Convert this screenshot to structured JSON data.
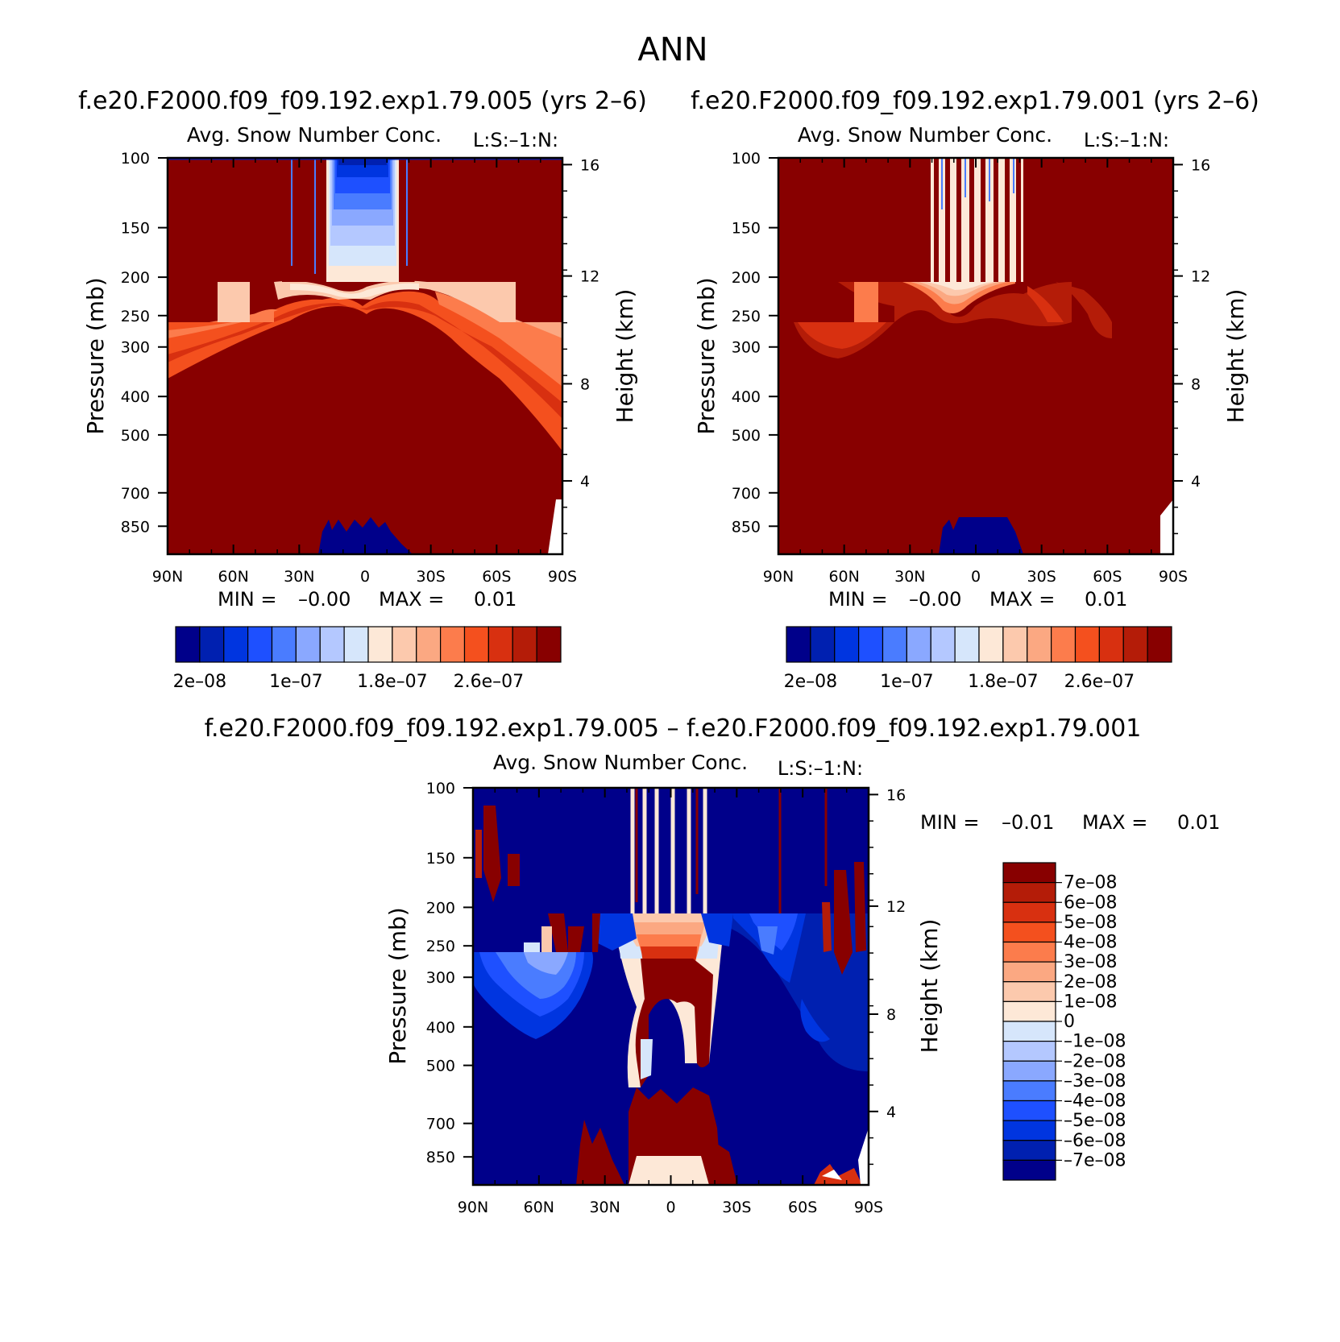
{
  "page": {
    "title": "ANN",
    "diff_title": "f.e20.F2000.f09_f09.192.exp1.79.005 – f.e20.F2000.f09_f09.192.exp1.79.001"
  },
  "colors": {
    "abs_scale": [
      "#00008a",
      "#0020b0",
      "#0035e0",
      "#1e50ff",
      "#4a7cff",
      "#8aa8ff",
      "#b4c8ff",
      "#d6e6fb",
      "#fde8d7",
      "#fcc9ad",
      "#fba882",
      "#fc7c4c",
      "#f4501e",
      "#d83010",
      "#b41c08",
      "#880000"
    ],
    "diff_scale": [
      "#00008a",
      "#0020b0",
      "#0035e0",
      "#1e50ff",
      "#4a7cff",
      "#8aa8ff",
      "#b4c8ff",
      "#d6e6fb",
      "#fde8d7",
      "#fcc9ad",
      "#fba882",
      "#fc7c4c",
      "#f4501e",
      "#d83010",
      "#b41c08",
      "#880000"
    ]
  },
  "chart_data": [
    {
      "type": "heatmap",
      "case": "f.e20.F2000.f09_f09.192.exp1.79.005 (yrs 2–6)",
      "title": "Avg. Snow Number Conc.",
      "units_label": "L:S:–1:N:",
      "xlabel": "",
      "ylabel": "Pressure (mb)",
      "y2label": "Height (km)",
      "x_ticks": [
        "90N",
        "60N",
        "30N",
        "0",
        "30S",
        "60S",
        "90S"
      ],
      "y_ticks": [
        "100",
        "150",
        "200",
        "250",
        "300",
        "400",
        "500",
        "700",
        "850"
      ],
      "y2_ticks": [
        "16",
        "12",
        "8",
        "4"
      ],
      "min_label": "MIN =",
      "min_value": "–0.00",
      "max_label": "MAX =",
      "max_value": "0.01",
      "colorbar_labels": [
        "2e–08",
        "1e–07",
        "1.8e–07",
        "2.6e–07"
      ]
    },
    {
      "type": "heatmap",
      "case": "f.e20.F2000.f09_f09.192.exp1.79.001 (yrs 2–6)",
      "title": "Avg. Snow Number Conc.",
      "units_label": "L:S:–1:N:",
      "xlabel": "",
      "ylabel": "Pressure (mb)",
      "y2label": "Height (km)",
      "x_ticks": [
        "90N",
        "60N",
        "30N",
        "0",
        "30S",
        "60S",
        "90S"
      ],
      "y_ticks": [
        "100",
        "150",
        "200",
        "250",
        "300",
        "400",
        "500",
        "700",
        "850"
      ],
      "y2_ticks": [
        "16",
        "12",
        "8",
        "4"
      ],
      "min_label": "MIN =",
      "min_value": "–0.00",
      "max_label": "MAX =",
      "max_value": "0.01",
      "colorbar_labels": [
        "2e–08",
        "1e–07",
        "1.8e–07",
        "2.6e–07"
      ]
    },
    {
      "type": "heatmap",
      "title": "Avg. Snow Number Conc.",
      "units_label": "L:S:–1:N:",
      "xlabel": "",
      "ylabel": "Pressure (mb)",
      "y2label": "Height (km)",
      "x_ticks": [
        "90N",
        "60N",
        "30N",
        "0",
        "30S",
        "60S",
        "90S"
      ],
      "y_ticks": [
        "100",
        "150",
        "200",
        "250",
        "300",
        "400",
        "500",
        "700",
        "850"
      ],
      "y2_ticks": [
        "16",
        "12",
        "8",
        "4"
      ],
      "min_label": "MIN =",
      "min_value": "–0.01",
      "max_label": "MAX =",
      "max_value": "0.01",
      "colorbar_labels": [
        "7e–08",
        "6e–08",
        "5e–08",
        "4e–08",
        "3e–08",
        "2e–08",
        "1e–08",
        "0",
        "–1e–08",
        "–2e–08",
        "–3e–08",
        "–4e–08",
        "–5e–08",
        "–6e–08",
        "–7e–08"
      ]
    }
  ]
}
